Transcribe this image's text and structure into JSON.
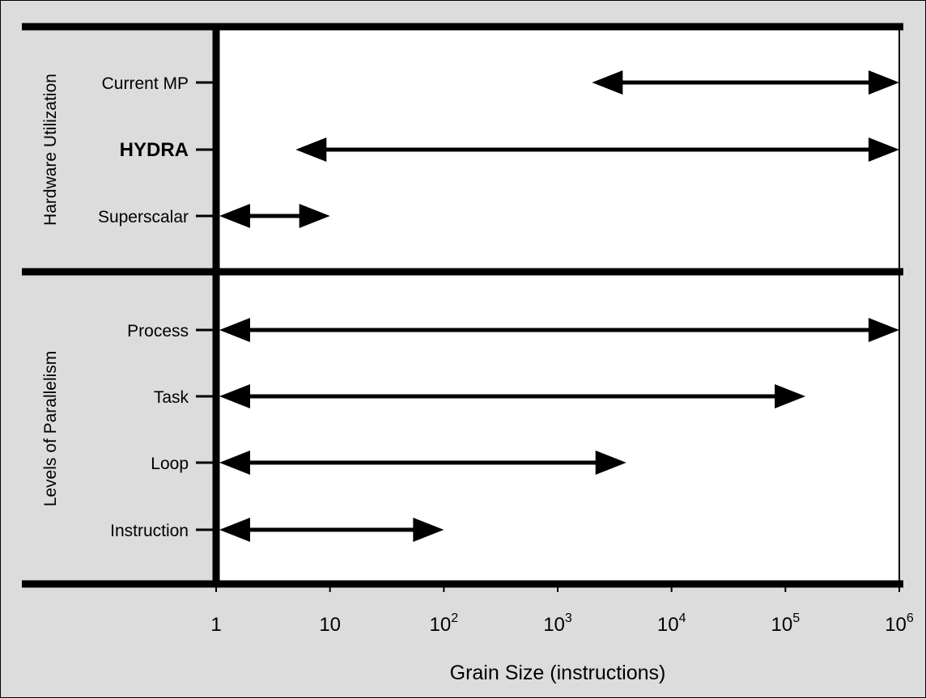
{
  "chart_data": {
    "type": "range",
    "x_scale": "log",
    "xlim": [
      1,
      1000000
    ],
    "xlabel": "Grain Size (instructions)",
    "ticks": [
      {
        "value": 1,
        "base": "1",
        "exp": ""
      },
      {
        "value": 10,
        "base": "10",
        "exp": ""
      },
      {
        "value": 100,
        "base": "10",
        "exp": "2"
      },
      {
        "value": 1000,
        "base": "10",
        "exp": "3"
      },
      {
        "value": 10000,
        "base": "10",
        "exp": "4"
      },
      {
        "value": 100000,
        "base": "10",
        "exp": "5"
      },
      {
        "value": 1000000,
        "base": "10",
        "exp": "6"
      }
    ],
    "groups": [
      {
        "title": "Hardware Utilization",
        "rows": [
          {
            "label": "Current MP",
            "bold": false,
            "min": 2000,
            "max": 1000000
          },
          {
            "label": "HYDRA",
            "bold": true,
            "min": 5,
            "max": 1000000
          },
          {
            "label": "Superscalar",
            "bold": false,
            "min": 1,
            "max": 10
          }
        ]
      },
      {
        "title": "Levels of Parallelism",
        "rows": [
          {
            "label": "Process",
            "bold": false,
            "min": 1,
            "max": 1000000
          },
          {
            "label": "Task",
            "bold": false,
            "min": 1,
            "max": 150000
          },
          {
            "label": "Loop",
            "bold": false,
            "min": 1,
            "max": 4000
          },
          {
            "label": "Instruction",
            "bold": false,
            "min": 1,
            "max": 100
          }
        ]
      }
    ],
    "colors": {
      "panel_background": "#dcdcdc",
      "plot_background": "#ffffff",
      "ink": "#000000"
    }
  }
}
